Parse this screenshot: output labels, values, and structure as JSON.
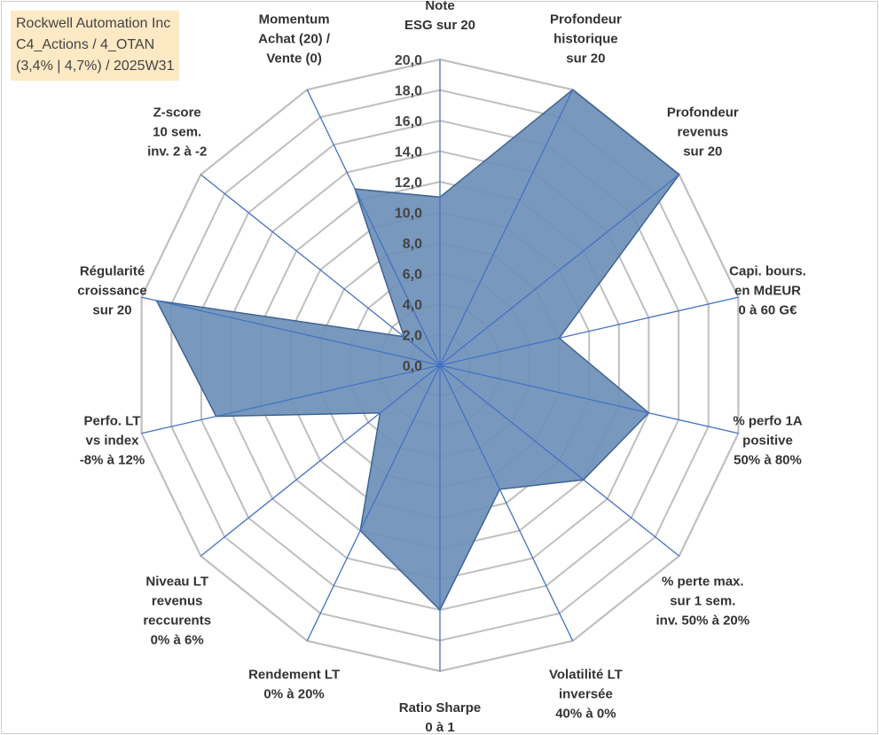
{
  "info_box": {
    "line1": "Rockwell Automation Inc",
    "line2": "C4_Actions / 4_OTAN",
    "line3": "(3,4% | 4,7%) / 2025W31"
  },
  "chart_data": {
    "type": "radar",
    "title": "",
    "range": [
      0,
      20
    ],
    "ticks": [
      "0,0",
      "2,0",
      "4,0",
      "6,0",
      "8,0",
      "10,0",
      "12,0",
      "14,0",
      "16,0",
      "18,0",
      "20,0"
    ],
    "axes": [
      [
        "Note",
        "ESG sur 20"
      ],
      [
        "Profondeur",
        "historique",
        "sur 20"
      ],
      [
        "Profondeur",
        "revenus",
        "sur 20"
      ],
      [
        "Capi. bours.",
        "en MdEUR",
        "0 à 60 G€"
      ],
      [
        "% perfo 1A",
        "positive",
        "50% à 80%"
      ],
      [
        "% perte max.",
        "sur 1 sem.",
        "inv. 50% à 20%"
      ],
      [
        "Volatilité LT",
        "inversée",
        "40% à 0%"
      ],
      [
        "Ratio Sharpe",
        "0 à 1"
      ],
      [
        "Rendement LT",
        "0% à 20%"
      ],
      [
        "Niveau LT",
        "revenus",
        "reccurents",
        "0% à 6%"
      ],
      [
        "Perfo. LT",
        "vs index",
        "-8% à 12%"
      ],
      [
        "Régularité",
        "croissance",
        "sur 20"
      ],
      [
        "Z-score",
        "10 sem.",
        "inv. 2 à -2"
      ],
      [
        "Momentum",
        "Achat (20) /",
        "Vente (0)"
      ]
    ],
    "series": [
      {
        "values": [
          11.0,
          20.0,
          20.0,
          8.0,
          14.0,
          12.0,
          9.0,
          16.0,
          12.0,
          5.0,
          15.0,
          19.0,
          3.0,
          12.8
        ]
      }
    ],
    "grid": true,
    "colors": {
      "fill": "#6d8fb8",
      "edge": "#3f6391",
      "spoke": "#4472c4",
      "grid": "#bfbfbf"
    }
  }
}
